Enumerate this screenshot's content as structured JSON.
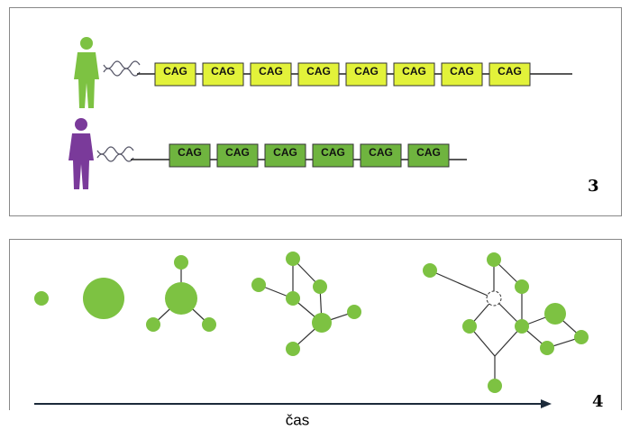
{
  "panel_3": {
    "label": "3",
    "long_repeat": [
      "CAG",
      "CAG",
      "CAG",
      "CAG",
      "CAG",
      "CAG",
      "CAG",
      "CAG"
    ],
    "short_repeat": [
      "CAG",
      "CAG",
      "CAG",
      "CAG",
      "CAG",
      "CAG"
    ]
  },
  "panel_4": {
    "label": "4",
    "axis_label": "čas"
  }
}
